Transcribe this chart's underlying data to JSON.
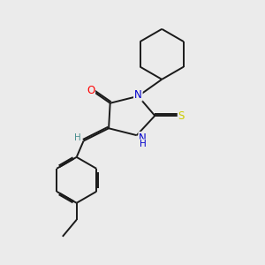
{
  "bg_color": "#ebebeb",
  "bond_color": "#1a1a1a",
  "bond_width": 1.4,
  "dbo": 0.055,
  "atom_colors": {
    "O": "#ff0000",
    "N": "#0000cc",
    "S": "#cccc00",
    "H_label": "#4a9090",
    "C": "#1a1a1a"
  },
  "font_size_atom": 8.5,
  "font_size_H": 7.5,
  "xlim": [
    0.5,
    8.5
  ],
  "ylim": [
    0.2,
    9.5
  ]
}
